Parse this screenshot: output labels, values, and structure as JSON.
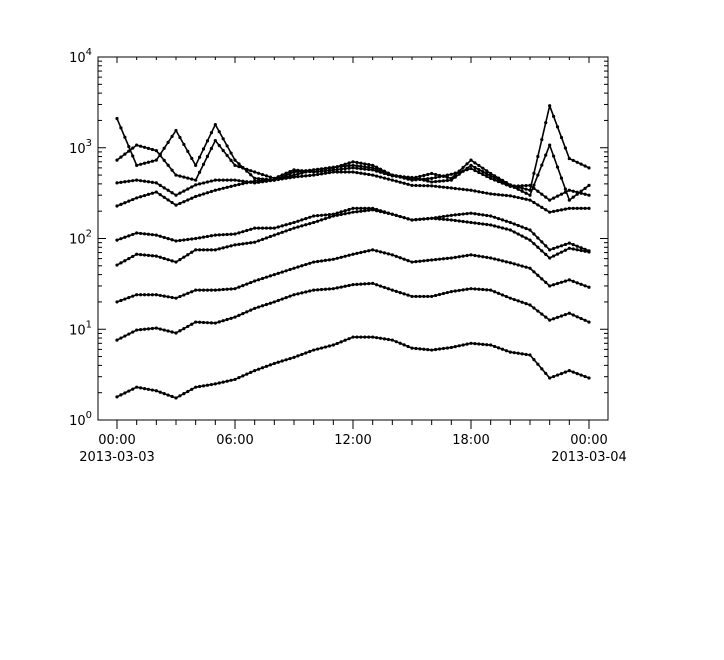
{
  "chart_data": {
    "type": "line",
    "title": "",
    "xlabel": "",
    "ylabel": "",
    "y_scale": "log",
    "ylim": [
      1,
      10000
    ],
    "xlim": [
      "2013-03-03 00:00",
      "2013-03-04 00:00"
    ],
    "grid": false,
    "line_color": "#000000",
    "marker": "dot",
    "y_ticks": [
      {
        "base": "10",
        "exp": "0"
      },
      {
        "base": "10",
        "exp": "1"
      },
      {
        "base": "10",
        "exp": "2"
      },
      {
        "base": "10",
        "exp": "3"
      },
      {
        "base": "10",
        "exp": "4"
      }
    ],
    "x_ticks": [
      {
        "hour": 0,
        "time": "00:00",
        "date": "2013-03-03"
      },
      {
        "hour": 6,
        "time": "06:00",
        "date": ""
      },
      {
        "hour": 12,
        "time": "12:00",
        "date": ""
      },
      {
        "hour": 18,
        "time": "18:00",
        "date": ""
      },
      {
        "hour": 24,
        "time": "00:00",
        "date": "2013-03-04"
      }
    ],
    "x_hours": [
      0,
      1,
      2,
      3,
      4,
      5,
      6,
      7,
      8,
      9,
      10,
      11,
      12,
      13,
      14,
      15,
      16,
      17,
      18,
      19,
      20,
      21,
      22,
      23,
      24
    ],
    "series": [
      {
        "values": [
          1.8,
          2.3,
          2.1,
          1.75,
          2.3,
          2.5,
          2.8,
          3.5,
          4.2,
          4.9,
          5.9,
          6.7,
          8.2,
          8.2,
          7.6,
          6.2,
          5.9,
          6.3,
          7.0,
          6.7,
          5.6,
          5.2,
          2.9,
          3.5,
          2.9
        ]
      },
      {
        "values": [
          7.6,
          9.8,
          10.3,
          9.1,
          12,
          11.7,
          13.6,
          17,
          20,
          24,
          27,
          28,
          31,
          32,
          27,
          23,
          23,
          26,
          28,
          27,
          22,
          18.5,
          12.6,
          15,
          12
        ]
      },
      {
        "values": [
          20,
          24,
          24,
          22,
          27,
          27,
          28,
          34,
          40,
          47,
          55,
          59,
          67,
          75,
          66,
          55,
          58,
          61,
          66,
          61,
          54,
          47,
          30,
          35,
          29
        ]
      },
      {
        "values": [
          51,
          67,
          64,
          55,
          75,
          75,
          85,
          91,
          109,
          130,
          150,
          177,
          195,
          207,
          185,
          160,
          167,
          160,
          150,
          141,
          124,
          96,
          61,
          78,
          71
        ]
      },
      {
        "values": [
          96,
          115,
          109,
          94,
          100,
          109,
          112,
          130,
          130,
          150,
          177,
          185,
          215,
          215,
          185,
          160,
          167,
          180,
          190,
          177,
          150,
          124,
          75,
          89,
          73
        ]
      },
      {
        "values": [
          228,
          280,
          325,
          233,
          290,
          340,
          385,
          430,
          440,
          475,
          500,
          540,
          540,
          500,
          440,
          385,
          380,
          360,
          340,
          310,
          295,
          265,
          195,
          215,
          215
        ]
      },
      {
        "values": [
          410,
          440,
          410,
          300,
          390,
          440,
          440,
          410,
          440,
          500,
          570,
          610,
          640,
          600,
          500,
          440,
          460,
          510,
          590,
          460,
          375,
          385,
          265,
          340,
          300
        ]
      },
      {
        "values": [
          2100,
          640,
          730,
          1550,
          640,
          1800,
          730,
          460,
          440,
          540,
          570,
          600,
          700,
          640,
          500,
          460,
          520,
          460,
          730,
          520,
          390,
          340,
          2900,
          760,
          600
        ]
      },
      {
        "values": [
          730,
          1070,
          930,
          500,
          440,
          1200,
          640,
          540,
          460,
          570,
          540,
          570,
          600,
          570,
          490,
          470,
          420,
          440,
          640,
          490,
          385,
          300,
          1070,
          265,
          385
        ]
      }
    ]
  }
}
